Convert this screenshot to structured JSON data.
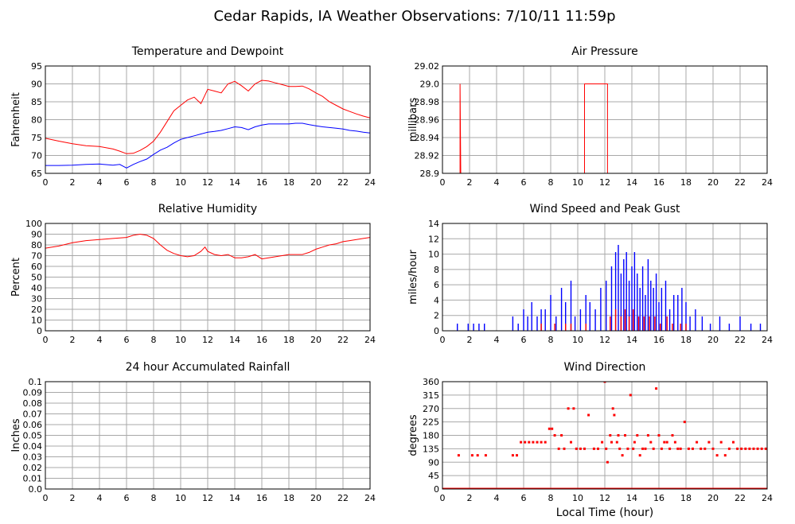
{
  "page": {
    "title": "Cedar Rapids, IA Weather Observations: 7/10/11 11:59p",
    "xlabel": "Local Time (hour)"
  },
  "colors": {
    "red": "#ff0000",
    "blue": "#0000ff",
    "grid": "#a8a8a8"
  },
  "chart_data": [
    {
      "id": "temp",
      "type": "line",
      "title": "Temperature and Dewpoint",
      "xlabel": "",
      "ylabel": "Fahrenheit",
      "xlim": [
        0,
        24
      ],
      "ylim": [
        65,
        95
      ],
      "grid": true,
      "xticks": [
        "0",
        "2",
        "4",
        "6",
        "8",
        "10",
        "12",
        "14",
        "16",
        "18",
        "20",
        "22",
        "24"
      ],
      "yticks": [
        "65",
        "70",
        "75",
        "80",
        "85",
        "90",
        "95"
      ],
      "series": [
        {
          "color": "#ff0000",
          "x": [
            0,
            1,
            2,
            3,
            4,
            5,
            5.5,
            6,
            6.5,
            7,
            7.5,
            8,
            8.5,
            9,
            9.5,
            10,
            10.5,
            11,
            11.5,
            12,
            12.5,
            13,
            13.5,
            14,
            14.5,
            15,
            15.5,
            16,
            16.5,
            17,
            17.5,
            18,
            18.5,
            19,
            19.5,
            20,
            20.5,
            21,
            21.5,
            22,
            22.5,
            23,
            23.5,
            24
          ],
          "y": [
            74.8,
            74,
            73.3,
            72.7,
            72.5,
            71.8,
            71.2,
            70.5,
            70.6,
            71.4,
            72.5,
            74,
            76.5,
            79.5,
            82.5,
            84,
            85.5,
            86.3,
            84.5,
            88.5,
            88,
            87.5,
            90,
            90.7,
            89.5,
            88,
            90,
            91,
            90.8,
            90.3,
            89.8,
            89.3,
            89.3,
            89.4,
            88.6,
            87.5,
            86.5,
            85,
            84,
            83,
            82.3,
            81.6,
            81,
            80.5
          ]
        },
        {
          "color": "#0000ff",
          "x": [
            0,
            1,
            2,
            3,
            4,
            5,
            5.5,
            6,
            6.5,
            7,
            7.5,
            8,
            8.5,
            9,
            9.5,
            10,
            10.5,
            11,
            11.5,
            12,
            12.5,
            13,
            13.5,
            14,
            14.5,
            15,
            15.5,
            16,
            16.5,
            17,
            17.5,
            18,
            18.5,
            19,
            19.5,
            20,
            20.5,
            21,
            21.5,
            22,
            22.5,
            23,
            23.5,
            24
          ],
          "y": [
            67.2,
            67.2,
            67.3,
            67.5,
            67.6,
            67.3,
            67.5,
            66.5,
            67.5,
            68.3,
            69,
            70.3,
            71.5,
            72.3,
            73.5,
            74.5,
            75,
            75.5,
            76,
            76.5,
            76.7,
            77,
            77.5,
            78,
            77.8,
            77.2,
            78,
            78.5,
            78.8,
            78.8,
            78.8,
            78.8,
            79,
            79,
            78.6,
            78.3,
            78,
            77.8,
            77.6,
            77.4,
            77,
            76.8,
            76.5,
            76.3
          ]
        }
      ]
    },
    {
      "id": "pressure",
      "type": "line",
      "title": "Air Pressure",
      "xlabel": "",
      "ylabel": "millibars",
      "xlim": [
        0,
        24
      ],
      "ylim": [
        28.9,
        29.02
      ],
      "grid": true,
      "xticks": [
        "0",
        "2",
        "4",
        "6",
        "8",
        "10",
        "12",
        "14",
        "16",
        "18",
        "20",
        "22",
        "24"
      ],
      "yticks": [
        "28.9",
        "28.92",
        "28.94",
        "28.96",
        "28.98",
        "29.0",
        "29.02"
      ],
      "series": [
        {
          "color": "#ff0000",
          "segments": [
            {
              "x": [
                1.2,
                1.3,
                1.3,
                1.35
              ],
              "y": [
                28.9,
                28.9,
                29.0,
                28.9
              ]
            },
            {
              "x": [
                10.5,
                10.5,
                12.2,
                12.2
              ],
              "y": [
                28.9,
                29.0,
                29.0,
                28.9
              ]
            }
          ]
        }
      ]
    },
    {
      "id": "rh",
      "type": "line",
      "title": "Relative Humidity",
      "xlabel": "",
      "ylabel": "Percent",
      "xlim": [
        0,
        24
      ],
      "ylim": [
        0,
        100
      ],
      "grid": true,
      "xticks": [
        "0",
        "2",
        "4",
        "6",
        "8",
        "10",
        "12",
        "14",
        "16",
        "18",
        "20",
        "22",
        "24"
      ],
      "yticks": [
        "0",
        "10",
        "20",
        "30",
        "40",
        "50",
        "60",
        "70",
        "80",
        "90",
        "100"
      ],
      "series": [
        {
          "color": "#ff0000",
          "x": [
            0,
            1,
            2,
            3,
            4,
            5,
            6,
            6.5,
            7,
            7.5,
            8,
            8.5,
            9,
            9.5,
            10,
            10.5,
            11,
            11.5,
            11.8,
            12,
            12.5,
            13,
            13.5,
            14,
            14.5,
            15,
            15.5,
            16,
            16.5,
            17,
            17.5,
            18,
            18.5,
            19,
            19.5,
            20,
            20.5,
            21,
            21.5,
            22,
            22.5,
            23,
            23.5,
            24
          ],
          "y": [
            77,
            79,
            82,
            84,
            85,
            86,
            87,
            89,
            90,
            89,
            86,
            80,
            75,
            72,
            70,
            69,
            70,
            74,
            78,
            74,
            71,
            70,
            71,
            68,
            68,
            69,
            71,
            67,
            68,
            69,
            70,
            71,
            71,
            71,
            73,
            76,
            78,
            80,
            81,
            83,
            84,
            85,
            86,
            87
          ]
        }
      ]
    },
    {
      "id": "wind",
      "type": "bar",
      "title": "Wind Speed and Peak Gust",
      "xlabel": "",
      "ylabel": "miles/hour",
      "xlim": [
        0,
        24
      ],
      "ylim": [
        0,
        15
      ],
      "grid": true,
      "xticks": [
        "0",
        "2",
        "4",
        "6",
        "8",
        "10",
        "12",
        "14",
        "16",
        "18",
        "20",
        "22",
        "24"
      ],
      "yticks": [
        "0",
        "2",
        "4",
        "6",
        "8",
        "10",
        "12",
        "14"
      ],
      "series": [
        {
          "color": "#0000ff",
          "x": [
            1.1,
            1.9,
            2.3,
            2.7,
            3.1,
            5.2,
            5.6,
            6.0,
            6.3,
            6.6,
            7.0,
            7.3,
            7.6,
            8.0,
            8.4,
            8.8,
            9.1,
            9.5,
            9.8,
            10.2,
            10.6,
            10.9,
            11.3,
            11.7,
            12.1,
            12.5,
            12.8,
            13.0,
            13.2,
            13.4,
            13.6,
            13.8,
            14.0,
            14.2,
            14.4,
            14.6,
            14.8,
            15.0,
            15.2,
            15.4,
            15.6,
            15.8,
            16.0,
            16.2,
            16.5,
            16.8,
            17.1,
            17.4,
            17.7,
            18.0,
            18.3,
            18.7,
            19.2,
            19.8,
            20.5,
            21.2,
            22.0,
            22.8,
            23.5
          ],
          "y": [
            1,
            1,
            1,
            1,
            1,
            2,
            1,
            3,
            2,
            4,
            2,
            3,
            3,
            5,
            2,
            6,
            4,
            7,
            2,
            3,
            5,
            4,
            3,
            6,
            7,
            9,
            11,
            12,
            8,
            10,
            11,
            7,
            9,
            11,
            8,
            6,
            9,
            5,
            10,
            7,
            6,
            8,
            4,
            6,
            7,
            3,
            5,
            5,
            6,
            4,
            2,
            3,
            2,
            1,
            2,
            1,
            2,
            1,
            1
          ]
        },
        {
          "color": "#ff0000",
          "x": [
            7.3,
            8.3,
            9.1,
            9.5,
            10.6,
            12.4,
            12.8,
            13.2,
            13.5,
            13.8,
            14.1,
            14.5,
            14.9,
            15.3,
            15.7,
            16.1,
            16.6,
            17.0,
            17.6,
            18.0
          ],
          "y": [
            1,
            1,
            1,
            1,
            1,
            2,
            3,
            2,
            3,
            2,
            3,
            2,
            2,
            2,
            2,
            1,
            2,
            1,
            1,
            1
          ]
        }
      ]
    },
    {
      "id": "rain",
      "type": "line",
      "title": "24 hour Accumulated Rainfall",
      "xlabel": "",
      "ylabel": "Inches",
      "xlim": [
        0,
        24
      ],
      "ylim": [
        0,
        0.1
      ],
      "grid": true,
      "xticks": [
        "0",
        "2",
        "4",
        "6",
        "8",
        "10",
        "12",
        "14",
        "16",
        "18",
        "20",
        "22",
        "24"
      ],
      "yticks": [
        "0.0",
        "0.01",
        "0.02",
        "0.03",
        "0.04",
        "0.05",
        "0.06",
        "0.07",
        "0.08",
        "0.09",
        "0.1"
      ],
      "series": [
        {
          "color": "#ff0000",
          "x": [
            0,
            24
          ],
          "y": [
            0,
            0
          ]
        }
      ]
    },
    {
      "id": "winddir",
      "type": "scatter",
      "title": "Wind Direction",
      "xlabel": "Local Time (hour)",
      "ylabel": "degrees",
      "xlim": [
        0,
        24
      ],
      "ylim": [
        0,
        360
      ],
      "grid": true,
      "xticks": [
        "0",
        "2",
        "4",
        "6",
        "8",
        "10",
        "12",
        "14",
        "16",
        "18",
        "20",
        "22",
        "24"
      ],
      "yticks": [
        "0",
        "45",
        "90",
        "135",
        "180",
        "225",
        "270",
        "315",
        "360"
      ],
      "series": [
        {
          "color": "#ff0000",
          "x": [
            1.2,
            2.2,
            2.6,
            3.2,
            5.2,
            5.5,
            5.8,
            6.1,
            6.4,
            6.7,
            7.0,
            7.3,
            7.6,
            7.9,
            8.1,
            8.3,
            8.6,
            8.8,
            9.0,
            9.3,
            9.5,
            9.7,
            9.9,
            10.2,
            10.5,
            10.8,
            11.2,
            11.5,
            11.8,
            12.0,
            12.1,
            12.2,
            12.4,
            12.5,
            12.6,
            12.7,
            12.9,
            13.0,
            13.1,
            13.3,
            13.5,
            13.7,
            13.9,
            14.1,
            14.2,
            14.4,
            14.6,
            14.8,
            15.0,
            15.2,
            15.4,
            15.6,
            15.8,
            16.0,
            16.2,
            16.4,
            16.6,
            16.8,
            17.0,
            17.2,
            17.4,
            17.6,
            17.9,
            18.2,
            18.5,
            18.8,
            19.1,
            19.4,
            19.7,
            20.0,
            20.3,
            20.6,
            20.9,
            21.2,
            21.5,
            21.8,
            22.1,
            22.4,
            22.7,
            23.0,
            23.3,
            23.6,
            23.9
          ],
          "y": [
            113,
            113,
            113,
            113,
            113,
            113,
            157,
            157,
            157,
            157,
            157,
            157,
            157,
            202,
            202,
            180,
            135,
            180,
            135,
            270,
            157,
            270,
            135,
            135,
            135,
            248,
            135,
            135,
            157,
            360,
            135,
            90,
            180,
            157,
            270,
            248,
            157,
            180,
            135,
            113,
            180,
            135,
            315,
            135,
            157,
            180,
            113,
            135,
            135,
            180,
            157,
            135,
            337,
            180,
            135,
            157,
            157,
            135,
            180,
            157,
            135,
            135,
            225,
            135,
            135,
            157,
            135,
            135,
            157,
            135,
            113,
            157,
            113,
            135,
            157,
            135,
            135,
            135,
            135,
            135,
            135,
            135,
            135
          ]
        },
        {
          "color": "#ff0000",
          "x": [
            0,
            24
          ],
          "y": [
            0,
            0
          ],
          "kind": "baseline"
        }
      ]
    }
  ]
}
